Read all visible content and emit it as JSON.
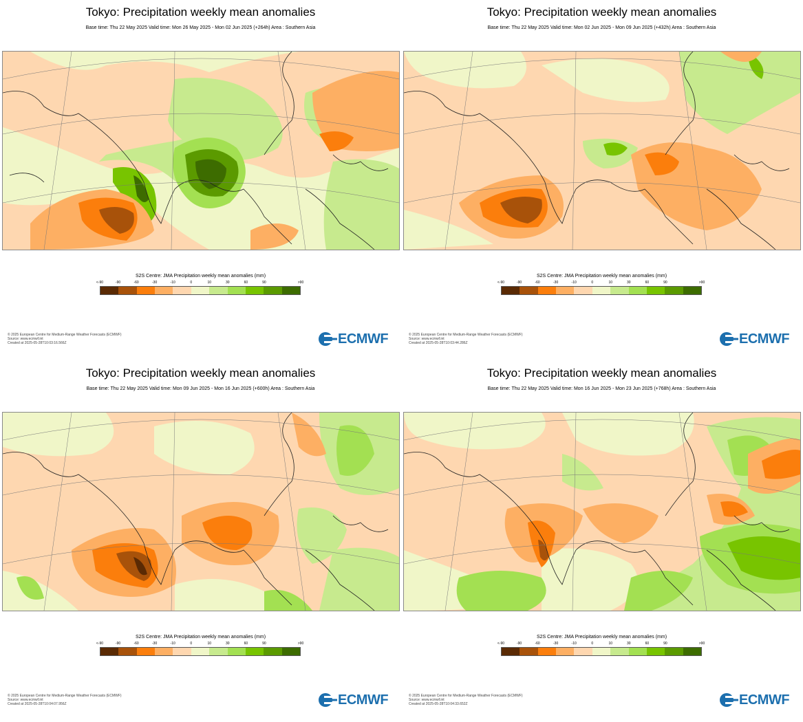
{
  "colorbar": {
    "title": "S2S Centre: JMA Precipitation weekly mean anomalies (mm)",
    "labels": [
      "<-90",
      "-90",
      "-60",
      "-30",
      "-10",
      "0",
      "10",
      "30",
      "60",
      "90",
      ">90"
    ],
    "colors": [
      "#5a2a04",
      "#a8520a",
      "#fb7e0c",
      "#fdaf63",
      "#fed7b0",
      "#f0f6c8",
      "#c7ea8e",
      "#a3e052",
      "#78c400",
      "#5b9a00",
      "#3d6c00"
    ]
  },
  "brand": {
    "name": "ECMWF"
  },
  "panels": [
    {
      "title": "Tokyo: Precipitation weekly mean anomalies",
      "subtitle": "Base time: Thu 22 May 2025 Valid time: Mon 26 May 2025 - Mon 02 Jun 2025 (+264h) Area : Southern Asia",
      "footer": [
        "© 2025 European Centre for Medium-Range Weather Forecasts (ECMWF)",
        "Source: www.ecmwf.int",
        "Created at 2025-05-28T10:03:16.566Z"
      ]
    },
    {
      "title": "Tokyo: Precipitation weekly mean anomalies",
      "subtitle": "Base time: Thu 22 May 2025 Valid time: Mon 02 Jun 2025 - Mon 09 Jun 2025 (+432h) Area : Southern Asia",
      "footer": [
        "© 2025 European Centre for Medium-Range Weather Forecasts (ECMWF)",
        "Source: www.ecmwf.int",
        "Created at 2025-05-28T10:03:44.286Z"
      ]
    },
    {
      "title": "Tokyo: Precipitation weekly mean anomalies",
      "subtitle": "Base time: Thu 22 May 2025 Valid time: Mon 09 Jun 2025 - Mon 16 Jun 2025 (+600h) Area : Southern Asia",
      "footer": [
        "© 2025 European Centre for Medium-Range Weather Forecasts (ECMWF)",
        "Source: www.ecmwf.int",
        "Created at 2025-05-28T10:04:07.956Z"
      ]
    },
    {
      "title": "Tokyo: Precipitation weekly mean anomalies",
      "subtitle": "Base time: Thu 22 May 2025 Valid time: Mon 16 Jun 2025 - Mon 23 Jun 2025 (+768h) Area : Southern Asia",
      "footer": [
        "© 2025 European Centre for Medium-Range Weather Forecasts (ECMWF)",
        "Source: www.ecmwf.int",
        "Created at 2025-05-28T10:04:33.652Z"
      ]
    }
  ]
}
